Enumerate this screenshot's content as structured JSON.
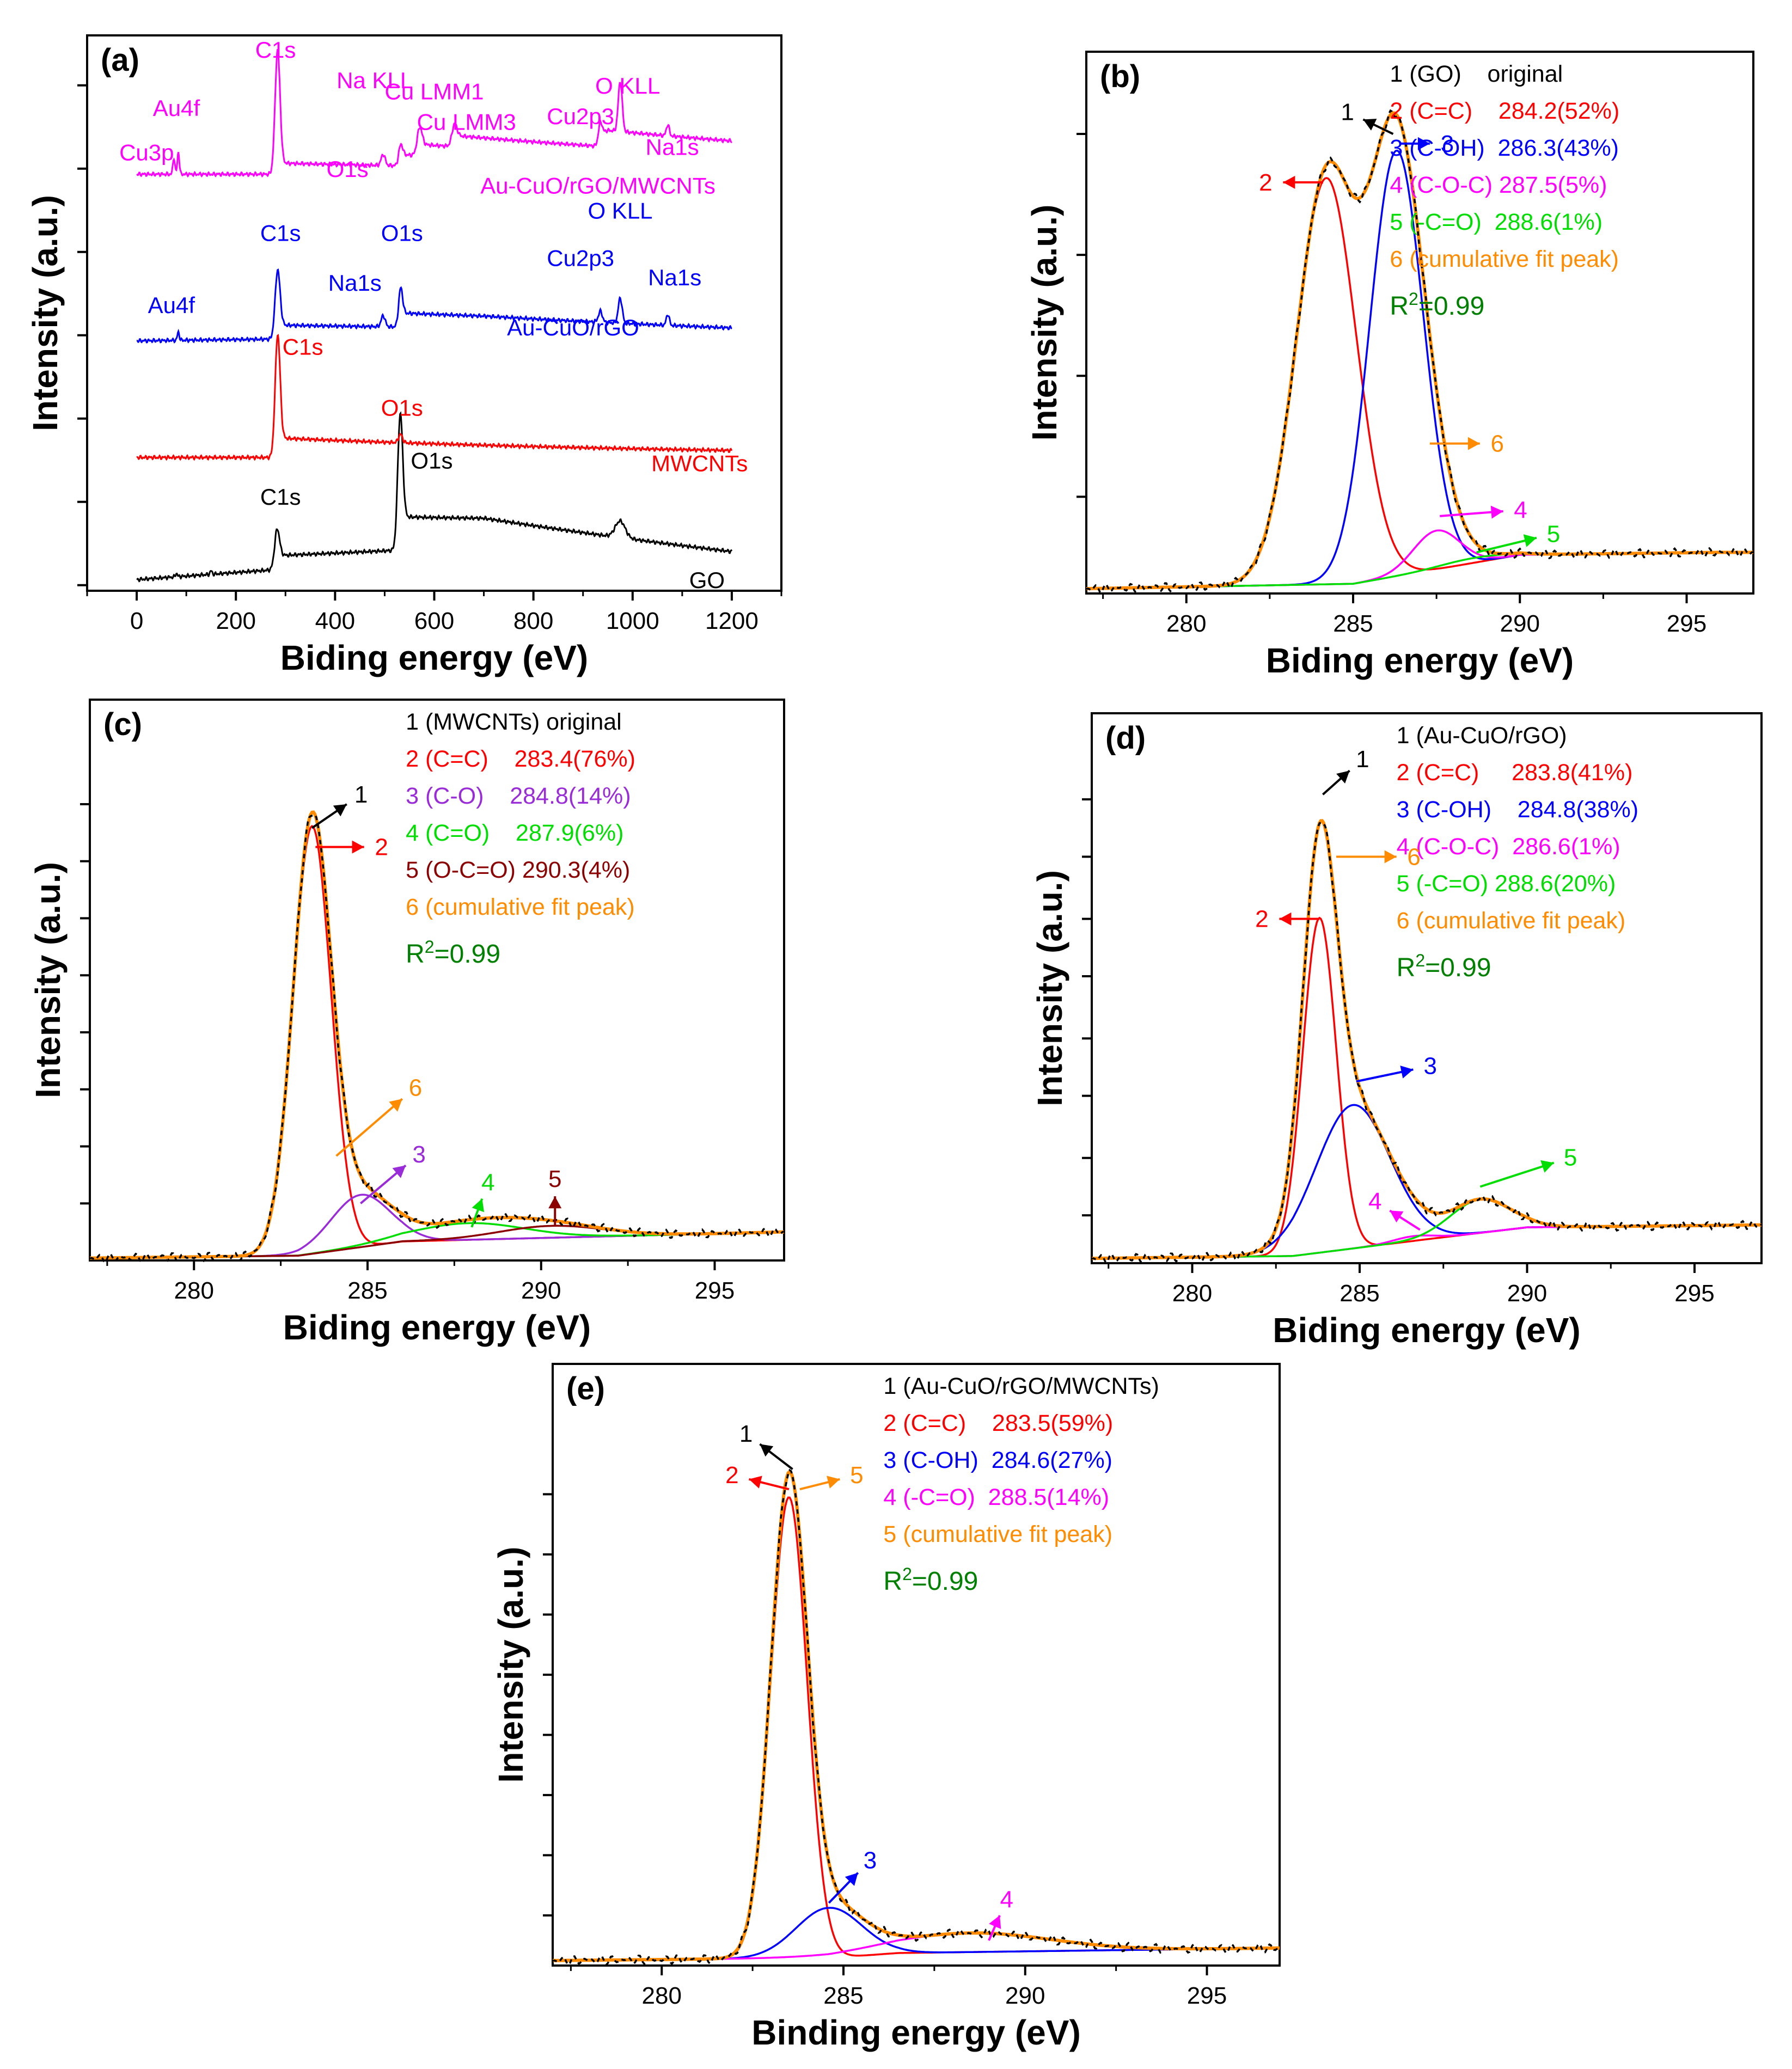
{
  "figure": {
    "colors": {
      "black": "#000000",
      "red": "#ff0000",
      "blue": "#0000ff",
      "magenta": "#ff00ff",
      "green": "#00dd00",
      "darkgreen": "#008000",
      "orange": "#ff8c00",
      "purple": "#9a2bd8",
      "brown": "#8b0000"
    }
  },
  "chart_data": [
    {
      "id": "a",
      "type": "line",
      "panel_label": "(a)",
      "xlabel": "Biding energy (eV)",
      "ylabel": "Intensity (a.u.)",
      "xlim": [
        -100,
        1300
      ],
      "ylim": [
        0,
        100
      ],
      "x_ticks": [
        0,
        200,
        400,
        600,
        800,
        1000,
        1200
      ],
      "x_tick_labels": [
        "0",
        "200",
        "400",
        "600",
        "800",
        "1000",
        "1200"
      ],
      "y_ticks": [
        1,
        16,
        31,
        46,
        61,
        76,
        91
      ],
      "series": [
        {
          "name": "GO",
          "color": "#000000",
          "offset": 2,
          "tail": 4.5,
          "peaks": [
            [
              283,
              5,
              7
            ],
            [
              531,
              5,
              22
            ],
            [
              975,
              10,
              3
            ],
            [
              80,
              2,
              0.6
            ],
            [
              150,
              2,
              0.6
            ]
          ],
          "steps": [
            [
              288,
              2.5
            ],
            [
              532,
              6
            ]
          ]
        },
        {
          "name": "MWCNTs",
          "color": "#ff0000",
          "offset": 24,
          "tail": 0,
          "peaks": [
            [
              284,
              5,
              21
            ],
            [
              532,
              4,
              1.5
            ]
          ],
          "steps": [
            [
              286,
              3.5
            ]
          ]
        },
        {
          "name": "Au-CuO/rGO",
          "color": "#0000ff",
          "offset": 45,
          "tail": 0.8,
          "peaks": [
            [
              284,
              5,
              12
            ],
            [
              532,
              4,
              6
            ],
            [
              497,
              4,
              2
            ],
            [
              84,
              2,
              1.5
            ],
            [
              935,
              4,
              2
            ],
            [
              975,
              4,
              4.5
            ],
            [
              1071,
              3,
              2
            ]
          ],
          "steps": [
            [
              288,
              2.5
            ],
            [
              533,
              2.5
            ]
          ]
        },
        {
          "name": "Au-CuO/rGO/MWCNTs",
          "color": "#ff00ff",
          "offset": 75,
          "tail": 0,
          "peaks": [
            [
              284,
              5,
              22
            ],
            [
              532,
              4,
              3
            ],
            [
              497,
              4,
              2
            ],
            [
              75,
              2,
              3
            ],
            [
              84,
              2,
              4
            ],
            [
              570,
              5,
              4
            ],
            [
              640,
              5,
              3
            ],
            [
              935,
              4,
              4
            ],
            [
              975,
              4,
              9
            ],
            [
              1071,
              3,
              2
            ]
          ],
          "steps": [
            [
              288,
              2
            ],
            [
              533,
              2
            ],
            [
              570,
              2
            ],
            [
              640,
              2
            ],
            [
              940,
              3
            ]
          ]
        }
      ],
      "annotations": [
        {
          "text": "Cu3p",
          "x": 20,
          "y": 77.5,
          "color": "#ff00ff"
        },
        {
          "text": "Au4f",
          "x": 80,
          "y": 85.5,
          "color": "#ff00ff"
        },
        {
          "text": "C1s",
          "x": 280,
          "y": 96,
          "color": "#ff00ff"
        },
        {
          "text": "Na KLL",
          "x": 480,
          "y": 90.5,
          "color": "#ff00ff"
        },
        {
          "text": "O1s",
          "x": 425,
          "y": 74.5,
          "color": "#ff00ff"
        },
        {
          "text": "Cu LMM1",
          "x": 600,
          "y": 88.5,
          "color": "#ff00ff"
        },
        {
          "text": "Cu LMM3",
          "x": 665,
          "y": 83,
          "color": "#ff00ff"
        },
        {
          "text": "Cu2p3",
          "x": 895,
          "y": 84,
          "color": "#ff00ff"
        },
        {
          "text": "O KLL",
          "x": 990,
          "y": 89.5,
          "color": "#ff00ff"
        },
        {
          "text": "Na1s",
          "x": 1080,
          "y": 78.5,
          "color": "#ff00ff"
        },
        {
          "text": "Au-CuO/rGO/MWCNTs",
          "x": 930,
          "y": 71.5,
          "color": "#ff00ff"
        },
        {
          "text": "C1s",
          "x": 290,
          "y": 63,
          "color": "#0000ff"
        },
        {
          "text": "O1s",
          "x": 535,
          "y": 63,
          "color": "#0000ff"
        },
        {
          "text": "Na1s",
          "x": 440,
          "y": 54,
          "color": "#0000ff"
        },
        {
          "text": "Au4f",
          "x": 70,
          "y": 50,
          "color": "#0000ff"
        },
        {
          "text": "O KLL",
          "x": 975,
          "y": 67,
          "color": "#0000ff"
        },
        {
          "text": "Cu2p3",
          "x": 895,
          "y": 58.5,
          "color": "#0000ff"
        },
        {
          "text": "Na1s",
          "x": 1085,
          "y": 55,
          "color": "#0000ff"
        },
        {
          "text": "Au-CuO/rGO",
          "x": 880,
          "y": 46,
          "color": "#0000ff"
        },
        {
          "text": "C1s",
          "x": 335,
          "y": 42.5,
          "color": "#ff0000"
        },
        {
          "text": "O1s",
          "x": 535,
          "y": 31.5,
          "color": "#ff0000"
        },
        {
          "text": "MWCNTs",
          "x": 1135,
          "y": 21.5,
          "color": "#ff0000"
        },
        {
          "text": "O1s",
          "x": 595,
          "y": 22,
          "color": "#000000"
        },
        {
          "text": "C1s",
          "x": 290,
          "y": 15.5,
          "color": "#000000"
        },
        {
          "text": "GO",
          "x": 1150,
          "y": 0.5,
          "color": "#000000"
        }
      ]
    },
    {
      "id": "b",
      "type": "line",
      "panel_label": "(b)",
      "xlabel": "Biding energy (eV)",
      "ylabel": "Intensity (a.u.)",
      "xlim": [
        277,
        297
      ],
      "ylim": [
        0,
        112
      ],
      "x_ticks": [
        280,
        285,
        290,
        295
      ],
      "x_tick_labels": [
        "280",
        "285",
        "290",
        "295"
      ],
      "y_ticks": [
        -5,
        20,
        45,
        70,
        95
      ],
      "baseline": [
        [
          277,
          1
        ],
        [
          285,
          2
        ],
        [
          290,
          8
        ],
        [
          296,
          8.5
        ]
      ],
      "components": [
        {
          "name": "2 (C=C)",
          "center": 284.2,
          "width": 0.9,
          "height": 84,
          "color": "#ff0000"
        },
        {
          "name": "3 (C-OH)",
          "center": 286.3,
          "width": 0.8,
          "height": 88,
          "color": "#0000ff"
        },
        {
          "name": "4 (C-O-C)",
          "center": 287.5,
          "width": 0.7,
          "height": 8,
          "color": "#ff00ff"
        },
        {
          "name": "5 (-C=O)",
          "center": 288.6,
          "width": 1.0,
          "height": 1,
          "color": "#00dd00"
        }
      ],
      "legend": [
        {
          "text": "1 (GO)    original",
          "color": "#000000"
        },
        {
          "text": "2 (C=C)    284.2(52%)",
          "color": "#ff0000"
        },
        {
          "text": "3 (C-OH)  286.3(43%)",
          "color": "#0000ff"
        },
        {
          "text": "4 (C-O-C) 287.5(5%)",
          "color": "#ff00ff"
        },
        {
          "text": "5 (-C=O)  288.6(1%)",
          "color": "#00dd00"
        },
        {
          "text": "6 (cumulative fit peak)",
          "color": "#ff8c00"
        }
      ],
      "r2": {
        "prefix": "R",
        "sup": "2",
        "suffix": "=0.99",
        "color": "#008000"
      },
      "markers": [
        {
          "label": "1",
          "color": "#000000",
          "x": 286.2,
          "y": 95,
          "dx": -0.9,
          "dy": 3
        },
        {
          "label": "3",
          "color": "#0000ff",
          "x": 286.4,
          "y": 93,
          "dx": 0.9,
          "dy": 0
        },
        {
          "label": "2",
          "color": "#ff0000",
          "x": 284.1,
          "y": 85,
          "dx": -1.2,
          "dy": 0
        },
        {
          "label": "6",
          "color": "#ff8c00",
          "x": 287.3,
          "y": 31,
          "dx": 1.5,
          "dy": 0
        },
        {
          "label": "4",
          "color": "#ff00ff",
          "x": 287.6,
          "y": 16,
          "dx": 1.9,
          "dy": 1
        },
        {
          "label": "5",
          "color": "#00dd00",
          "x": 288.7,
          "y": 8.5,
          "dx": 1.8,
          "dy": 3
        }
      ]
    },
    {
      "id": "c",
      "type": "line",
      "panel_label": "(c)",
      "xlabel": "Biding energy (eV)",
      "ylabel": "Intensity (a.u.)",
      "xlim": [
        277,
        297
      ],
      "ylim": [
        0,
        118
      ],
      "x_ticks": [
        280,
        285,
        290,
        295
      ],
      "x_tick_labels": [
        "280",
        "285",
        "290",
        "295"
      ],
      "y_ticks": [
        -1,
        12,
        24,
        36,
        48,
        60,
        72,
        84,
        96
      ],
      "baseline": [
        [
          277,
          0.5
        ],
        [
          283,
          1
        ],
        [
          286,
          4
        ],
        [
          297,
          6
        ]
      ],
      "components": [
        {
          "name": "2 (C=C)",
          "center": 283.4,
          "width": 0.55,
          "height": 90,
          "color": "#ff0000"
        },
        {
          "name": "3 (C-O)",
          "center": 284.8,
          "width": 0.85,
          "height": 11,
          "color": "#9a2bd8"
        },
        {
          "name": "4 (C=O)",
          "center": 287.9,
          "width": 1.6,
          "height": 3.5,
          "color": "#00dd00"
        },
        {
          "name": "5 (O-C=O)",
          "center": 290.3,
          "width": 1.5,
          "height": 2.5,
          "color": "#8b0000"
        }
      ],
      "legend": [
        {
          "text": "1 (MWCNTs) original",
          "color": "#000000"
        },
        {
          "text": "2 (C=C)    283.4(76%)",
          "color": "#ff0000"
        },
        {
          "text": "3 (C-O)    284.8(14%)",
          "color": "#9a2bd8"
        },
        {
          "text": "4 (C=O)    287.9(6%)",
          "color": "#00dd00"
        },
        {
          "text": "5 (O-C=O) 290.3(4%)",
          "color": "#8b0000"
        },
        {
          "text": "6 (cumulative fit peak)",
          "color": "#ff8c00"
        }
      ],
      "r2": {
        "prefix": "R",
        "sup": "2",
        "suffix": "=0.99",
        "color": "#008000"
      },
      "markers": [
        {
          "label": "1",
          "color": "#000000",
          "x": 283.4,
          "y": 91,
          "dx": 1,
          "dy": 5
        },
        {
          "label": "2",
          "color": "#ff0000",
          "x": 283.5,
          "y": 87,
          "dx": 1.4,
          "dy": 0
        },
        {
          "label": "6",
          "color": "#ff8c00",
          "x": 284.1,
          "y": 22,
          "dx": 1.9,
          "dy": 12
        },
        {
          "label": "3",
          "color": "#9a2bd8",
          "x": 284.8,
          "y": 12,
          "dx": 1.3,
          "dy": 8
        },
        {
          "label": "4",
          "color": "#00dd00",
          "x": 288.0,
          "y": 7,
          "dx": 0.3,
          "dy": 6
        },
        {
          "label": "5",
          "color": "#8b0000",
          "x": 290.4,
          "y": 7.5,
          "dx": 0,
          "dy": 6
        }
      ]
    },
    {
      "id": "d",
      "type": "line",
      "panel_label": "(d)",
      "xlabel": "Biding energy (eV)",
      "ylabel": "Intensity (a.u.)",
      "xlim": [
        277,
        297
      ],
      "ylim": [
        0,
        115
      ],
      "x_ticks": [
        280,
        285,
        290,
        295
      ],
      "x_tick_labels": [
        "280",
        "285",
        "290",
        "295"
      ],
      "y_ticks": [
        -2,
        10,
        22,
        35,
        47,
        60,
        72,
        85,
        97
      ],
      "baseline": [
        [
          277,
          1
        ],
        [
          283,
          1.5
        ],
        [
          287,
          5
        ],
        [
          290,
          7.5
        ],
        [
          297,
          8
        ]
      ],
      "components": [
        {
          "name": "2 (C=C)",
          "center": 283.8,
          "width": 0.5,
          "height": 70,
          "color": "#ff0000"
        },
        {
          "name": "3 (C-OH)",
          "center": 284.8,
          "width": 1.1,
          "height": 30,
          "color": "#0000ff"
        },
        {
          "name": "4 (C-O-C)",
          "center": 286.6,
          "width": 0.6,
          "height": 1,
          "color": "#ff00ff"
        },
        {
          "name": "5 (-C=O)",
          "center": 288.6,
          "width": 0.9,
          "height": 7,
          "color": "#00dd00"
        }
      ],
      "legend": [
        {
          "text": "1 (Au-CuO/rGO)",
          "color": "#000000"
        },
        {
          "text": "2 (C=C)     283.8(41%)",
          "color": "#ff0000"
        },
        {
          "text": "3 (C-OH)    284.8(38%)",
          "color": "#0000ff"
        },
        {
          "text": "4 (C-O-C)  286.6(1%)",
          "color": "#ff00ff"
        },
        {
          "text": "5 (-C=O) 288.6(20%)",
          "color": "#00dd00"
        },
        {
          "text": "6 (cumulative fit peak)",
          "color": "#ff8c00"
        }
      ],
      "r2": {
        "prefix": "R",
        "sup": "2",
        "suffix": "=0.99",
        "color": "#008000"
      },
      "markers": [
        {
          "label": "1",
          "color": "#000000",
          "x": 283.9,
          "y": 98,
          "dx": 0.8,
          "dy": 5
        },
        {
          "label": "6",
          "color": "#ff8c00",
          "x": 284.3,
          "y": 85,
          "dx": 1.8,
          "dy": 0
        },
        {
          "label": "2",
          "color": "#ff0000",
          "x": 283.8,
          "y": 72,
          "dx": -1.2,
          "dy": 0
        },
        {
          "label": "3",
          "color": "#0000ff",
          "x": 284.9,
          "y": 38,
          "dx": 1.7,
          "dy": 2.5
        },
        {
          "label": "5",
          "color": "#00dd00",
          "x": 288.6,
          "y": 16,
          "dx": 2.2,
          "dy": 5
        },
        {
          "label": "4",
          "color": "#ff00ff",
          "x": 286.8,
          "y": 7,
          "dx": -0.9,
          "dy": 4
        }
      ]
    },
    {
      "id": "e",
      "type": "line",
      "panel_label": "(e)",
      "xlabel": "Binding energy (eV)",
      "ylabel": "Intensity (a.u.)",
      "xlim": [
        277,
        297
      ],
      "ylim": [
        0,
        120
      ],
      "x_ticks": [
        280,
        285,
        290,
        295
      ],
      "x_tick_labels": [
        "280",
        "285",
        "290",
        "295"
      ],
      "y_ticks": [
        -2,
        10,
        22,
        34,
        46,
        58,
        70,
        82,
        94
      ],
      "baseline": [
        [
          277,
          1
        ],
        [
          284.6,
          1.5
        ],
        [
          286.5,
          2.5
        ],
        [
          297,
          3.5
        ]
      ],
      "components": [
        {
          "name": "2 (C=C)",
          "center": 283.5,
          "width": 0.5,
          "height": 92,
          "color": "#ff0000"
        },
        {
          "name": "3 (C-OH)",
          "center": 284.6,
          "width": 0.9,
          "height": 10,
          "color": "#0000ff"
        },
        {
          "name": "4 (-C=O)",
          "center": 288.5,
          "width": 2.2,
          "height": 3.8,
          "color": "#ff00ff"
        }
      ],
      "legend": [
        {
          "text": "1 (Au-CuO/rGO/MWCNTs)",
          "color": "#000000"
        },
        {
          "text": "2 (C=C)    283.5(59%)",
          "color": "#ff0000"
        },
        {
          "text": "3 (C-OH)  284.6(27%)",
          "color": "#0000ff"
        },
        {
          "text": "4 (-C=O)  288.5(14%)",
          "color": "#ff00ff"
        },
        {
          "text": "5 (cumulative fit peak)",
          "color": "#ff8c00"
        }
      ],
      "r2": {
        "prefix": "R",
        "sup": "2",
        "suffix": "=0.99",
        "color": "#008000"
      },
      "markers": [
        {
          "label": "1",
          "color": "#000000",
          "x": 283.6,
          "y": 99,
          "dx": -0.9,
          "dy": 5
        },
        {
          "label": "2",
          "color": "#ff0000",
          "x": 283.5,
          "y": 95,
          "dx": -1.1,
          "dy": 2
        },
        {
          "label": "5",
          "color": "#ff8c00",
          "x": 283.8,
          "y": 95,
          "dx": 1.1,
          "dy": 2
        },
        {
          "label": "3",
          "color": "#0000ff",
          "x": 284.6,
          "y": 12.5,
          "dx": 0.8,
          "dy": 6
        },
        {
          "label": "4",
          "color": "#ff00ff",
          "x": 289,
          "y": 5,
          "dx": 0.3,
          "dy": 5
        }
      ]
    }
  ]
}
